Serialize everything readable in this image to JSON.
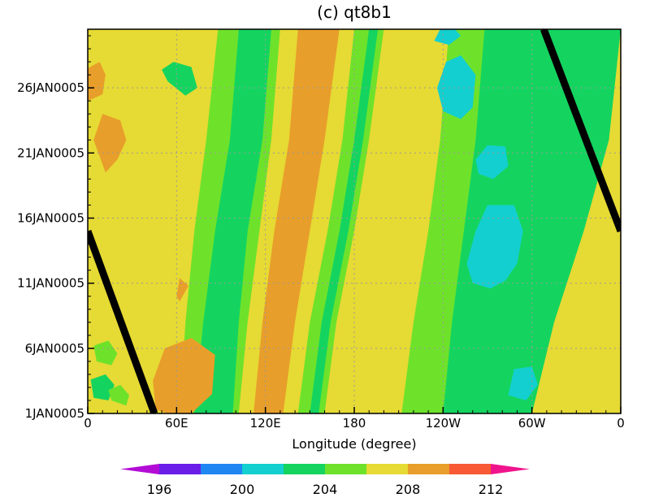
{
  "chart_data": {
    "type": "heatmap",
    "title": "(c) qt8b1",
    "xlabel": "Longitude (degree)",
    "ylabel": "",
    "x_ticks": [
      "0",
      "60E",
      "120E",
      "180",
      "120W",
      "60W",
      "0"
    ],
    "x_tick_values": [
      0,
      60,
      120,
      180,
      240,
      300,
      360
    ],
    "y_ticks": [
      "1JAN0005",
      "6JAN0005",
      "11JAN0005",
      "16JAN0005",
      "21JAN0005",
      "26JAN0005"
    ],
    "y_tick_values": [
      1,
      6,
      11,
      16,
      21,
      26
    ],
    "xlim": [
      0,
      360
    ],
    "ylim": [
      1,
      30.5
    ],
    "grid": true,
    "colorbar": {
      "levels": [
        194,
        196,
        198,
        200,
        202,
        204,
        206,
        208,
        210,
        212,
        214
      ],
      "labels": [
        "196",
        "200",
        "204",
        "208",
        "212"
      ],
      "label_values": [
        196,
        200,
        204,
        208,
        212
      ],
      "colors": [
        "#b30cd6",
        "#6a1ee8",
        "#1f86f2",
        "#14cfcf",
        "#14d45f",
        "#6ee22b",
        "#e6da34",
        "#e89e2a",
        "#f75a35",
        "#f0148c"
      ]
    },
    "bands": [
      {
        "value": 207,
        "x_start": [
          50,
          52,
          58,
          70,
          80
        ],
        "x_end": [
          58,
          62,
          70,
          80,
          92
        ]
      },
      {
        "value": 205,
        "x_start": [
          62,
          66,
          72,
          80,
          88
        ],
        "x_end": [
          102,
          108,
          116,
          124,
          130
        ]
      },
      {
        "value": 203,
        "x_start": [
          72,
          78,
          86,
          96,
          102
        ],
        "x_end": [
          98,
          102,
          108,
          118,
          124
        ]
      },
      {
        "value": 207,
        "x_start": [
          102,
          108,
          116,
          124,
          130
        ],
        "x_end": [
          112,
          118,
          126,
          136,
          142
        ]
      },
      {
        "value": 209,
        "x_start": [
          112,
          118,
          126,
          136,
          142
        ],
        "x_end": [
          132,
          140,
          150,
          160,
          170
        ]
      },
      {
        "value": 207,
        "x_start": [
          132,
          140,
          150,
          160,
          170
        ],
        "x_end": [
          142,
          150,
          162,
          172,
          180
        ]
      },
      {
        "value": 205,
        "x_start": [
          142,
          150,
          162,
          172,
          180
        ],
        "x_end": [
          160,
          168,
          180,
          190,
          200
        ]
      },
      {
        "value": 203,
        "x_start": [
          150,
          158,
          170,
          180,
          190
        ],
        "x_end": [
          156,
          164,
          176,
          186,
          196
        ]
      },
      {
        "value": 207,
        "x_start": [
          160,
          168,
          180,
          190,
          200
        ],
        "x_end": [
          212,
          220,
          230,
          238,
          244
        ]
      },
      {
        "value": 205,
        "x_start": [
          212,
          220,
          230,
          238,
          244
        ],
        "x_end": [
          360,
          360,
          360,
          360,
          360
        ]
      },
      {
        "value": 203,
        "x_start": [
          240,
          246,
          254,
          262,
          268
        ],
        "x_end": [
          360,
          360,
          360,
          360,
          360
        ]
      },
      {
        "value": 207,
        "x_start": [
          300,
          315,
          335,
          352,
          360
        ],
        "x_end": [
          360,
          360,
          360,
          360,
          360
        ]
      }
    ],
    "bands_y": [
      1,
      8,
      15,
      22,
      30.5
    ],
    "base_value": 207,
    "blobs": [
      {
        "value": 209,
        "x": [
          12,
          20,
          26,
          22,
          10,
          4
        ],
        "y": [
          19.5,
          20.5,
          22,
          23.5,
          24,
          22
        ]
      },
      {
        "value": 209,
        "x": [
          0,
          10,
          12,
          8,
          0
        ],
        "y": [
          25,
          25.5,
          27,
          28,
          27.5
        ]
      },
      {
        "value": 209,
        "x": [
          46,
          54,
          70,
          84,
          86,
          70,
          52,
          44
        ],
        "y": [
          1.3,
          1,
          1,
          2.5,
          5.5,
          6.8,
          6,
          3.5
        ]
      },
      {
        "value": 209,
        "x": [
          60,
          62,
          68,
          62
        ],
        "y": [
          10,
          9.6,
          10.8,
          11.4
        ]
      },
      {
        "value": 201,
        "x": [
          260,
          272,
          282,
          290,
          294,
          288,
          270,
          262,
          256
        ],
        "y": [
          11,
          10.6,
          11.2,
          12.5,
          15,
          17,
          17,
          15,
          12.5
        ]
      },
      {
        "value": 201,
        "x": [
          264,
          274,
          284,
          282,
          270,
          262
        ],
        "y": [
          19.4,
          19,
          20,
          21.5,
          21.6,
          20.5
        ]
      },
      {
        "value": 201,
        "x": [
          240,
          252,
          260,
          262,
          252,
          242,
          236
        ],
        "y": [
          24.2,
          23.6,
          24.5,
          27,
          28.5,
          28,
          26
        ]
      },
      {
        "value": 201,
        "x": [
          234,
          244,
          252,
          248,
          238
        ],
        "y": [
          29.6,
          29.3,
          30,
          30.5,
          30.5
        ]
      },
      {
        "value": 201,
        "x": [
          284,
          296,
          304,
          300,
          288
        ],
        "y": [
          2.4,
          2,
          3.2,
          4.6,
          4.4
        ]
      },
      {
        "value": 203,
        "x": [
          54,
          66,
          74,
          70,
          58,
          50
        ],
        "y": [
          26.5,
          25.4,
          26,
          27.6,
          28,
          27.4
        ]
      },
      {
        "value": 203,
        "x": [
          100,
          110,
          114,
          106,
          98
        ],
        "y": [
          18,
          17.4,
          19,
          20.4,
          19.6
        ]
      },
      {
        "value": 203,
        "x": [
          4,
          14,
          18,
          12,
          2
        ],
        "y": [
          2.2,
          2,
          3.2,
          4,
          3.6
        ]
      },
      {
        "value": 205,
        "x": [
          6,
          16,
          20,
          14,
          4
        ],
        "y": [
          5,
          4.7,
          5.6,
          6.6,
          6.2
        ]
      },
      {
        "value": 205,
        "x": [
          16,
          26,
          28,
          22,
          14
        ],
        "y": [
          2,
          1.6,
          2.4,
          3.2,
          2.8
        ]
      }
    ],
    "contour_lines": [
      {
        "label": "diagonal-left",
        "x": [
          0,
          45
        ],
        "y": [
          15,
          1
        ]
      },
      {
        "label": "diagonal-right",
        "x": [
          308,
          360
        ],
        "y": [
          30.5,
          15
        ]
      }
    ]
  }
}
